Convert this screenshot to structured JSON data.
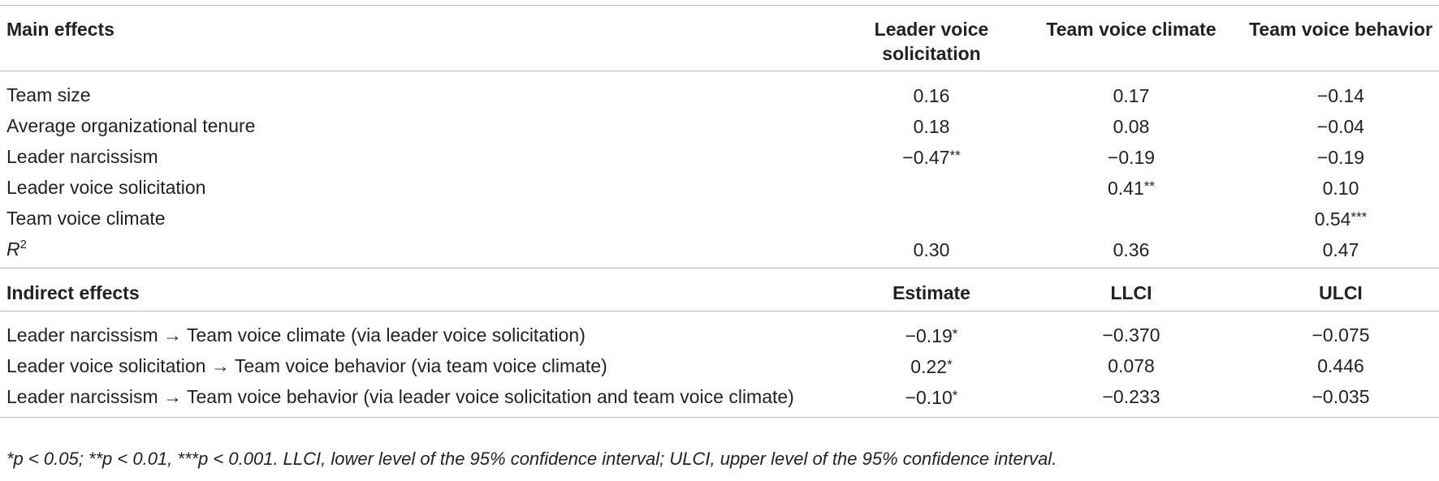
{
  "main_header": {
    "label": "Main effects",
    "col1": "Leader voice solicitation",
    "col2": "Team voice climate",
    "col3": "Team voice behavior"
  },
  "main_rows": [
    {
      "label": "Team size",
      "v1": "0.16",
      "v1s": "",
      "v2": "0.17",
      "v2s": "",
      "v3": "−0.14",
      "v3s": ""
    },
    {
      "label": "Average organizational tenure",
      "v1": "0.18",
      "v1s": "",
      "v2": "0.08",
      "v2s": "",
      "v3": "−0.04",
      "v3s": ""
    },
    {
      "label": "Leader narcissism",
      "v1": "−0.47",
      "v1s": "**",
      "v2": "−0.19",
      "v2s": "",
      "v3": "−0.19",
      "v3s": ""
    },
    {
      "label": "Leader voice solicitation",
      "v1": "",
      "v1s": "",
      "v2": "0.41",
      "v2s": "**",
      "v3": "0.10",
      "v3s": ""
    },
    {
      "label": "Team voice climate",
      "v1": "",
      "v1s": "",
      "v2": "",
      "v2s": "",
      "v3": "0.54",
      "v3s": "***"
    },
    {
      "label": "R",
      "label_sup": "2",
      "v1": "0.30",
      "v1s": "",
      "v2": "0.36",
      "v2s": "",
      "v3": "0.47",
      "v3s": ""
    }
  ],
  "indirect_header": {
    "label": "Indirect effects",
    "col1": "Estimate",
    "col2": "LLCI",
    "col3": "ULCI"
  },
  "indirect_rows": [
    {
      "label": "Leader narcissism → Team voice climate (via leader voice solicitation)",
      "v1": "−0.19",
      "v1s": "*",
      "v2": "−0.370",
      "v3": "−0.075"
    },
    {
      "label": "Leader voice solicitation → Team voice behavior (via team voice climate)",
      "v1": "0.22",
      "v1s": "*",
      "v2": "0.078",
      "v3": "0.446"
    },
    {
      "label": "Leader narcissism → Team voice behavior (via leader voice solicitation and team voice climate)",
      "v1": "−0.10",
      "v1s": "*",
      "v2": "−0.233",
      "v3": "−0.035"
    }
  ],
  "footnote": "*p < 0.05; **p < 0.01, ***p < 0.001. LLCI, lower level of the 95% confidence interval; ULCI, upper level of the 95% confidence interval."
}
